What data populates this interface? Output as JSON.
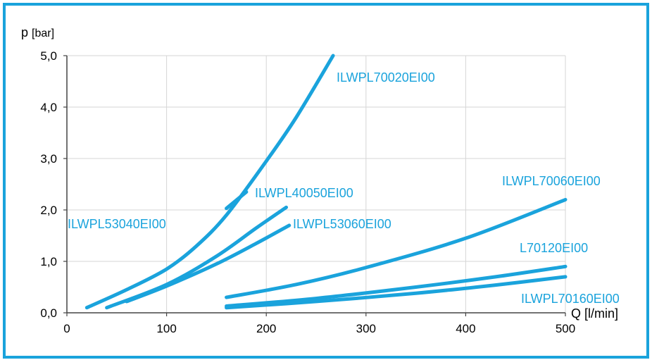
{
  "chart_data": {
    "type": "line",
    "title": "",
    "ylabel": {
      "symbol": "p",
      "unit": "[bar]"
    },
    "xlabel": "Q [l/min]",
    "xlim": [
      0,
      500
    ],
    "ylim": [
      0,
      5
    ],
    "x_ticks": [
      {
        "value": 0,
        "label": "0"
      },
      {
        "value": 100,
        "label": "100"
      },
      {
        "value": 200,
        "label": "200"
      },
      {
        "value": 300,
        "label": "300"
      },
      {
        "value": 400,
        "label": "400"
      },
      {
        "value": 500,
        "label": "500"
      }
    ],
    "y_ticks": [
      {
        "value": 0,
        "label": "0,0"
      },
      {
        "value": 1,
        "label": "1,0"
      },
      {
        "value": 2,
        "label": "2,0"
      },
      {
        "value": 3,
        "label": "3,0"
      },
      {
        "value": 4,
        "label": "4,0"
      },
      {
        "value": 5,
        "label": "5,0"
      }
    ],
    "grid": true,
    "line_color": "#1aa3dc",
    "series": [
      {
        "name": "ILWPL70020EI00",
        "points": [
          [
            20,
            0.1
          ],
          [
            60,
            0.45
          ],
          [
            100,
            0.85
          ],
          [
            130,
            1.3
          ],
          [
            160,
            1.9
          ],
          [
            200,
            2.95
          ],
          [
            230,
            3.8
          ],
          [
            267,
            5.0
          ]
        ]
      },
      {
        "name": "ILWPL53040EI00",
        "points": [
          [
            160,
            2.03
          ],
          [
            180,
            2.35
          ]
        ]
      },
      {
        "name": "ILWPL40050EI00",
        "points": [
          [
            40,
            0.1
          ],
          [
            100,
            0.55
          ],
          [
            150,
            1.1
          ],
          [
            190,
            1.65
          ],
          [
            220,
            2.05
          ]
        ]
      },
      {
        "name": "ILWPL53060EI00",
        "points": [
          [
            60,
            0.22
          ],
          [
            100,
            0.52
          ],
          [
            150,
            0.95
          ],
          [
            190,
            1.35
          ],
          [
            223,
            1.7
          ]
        ]
      },
      {
        "name": "ILWPL70060EI00",
        "points": [
          [
            160,
            0.3
          ],
          [
            230,
            0.55
          ],
          [
            300,
            0.88
          ],
          [
            400,
            1.45
          ],
          [
            500,
            2.2
          ]
        ]
      },
      {
        "name": "L70120EI00",
        "points": [
          [
            160,
            0.13
          ],
          [
            250,
            0.28
          ],
          [
            350,
            0.5
          ],
          [
            430,
            0.7
          ],
          [
            500,
            0.9
          ]
        ]
      },
      {
        "name": "ILWPL70160EI00",
        "points": [
          [
            160,
            0.1
          ],
          [
            250,
            0.22
          ],
          [
            350,
            0.38
          ],
          [
            430,
            0.54
          ],
          [
            500,
            0.7
          ]
        ]
      }
    ]
  }
}
